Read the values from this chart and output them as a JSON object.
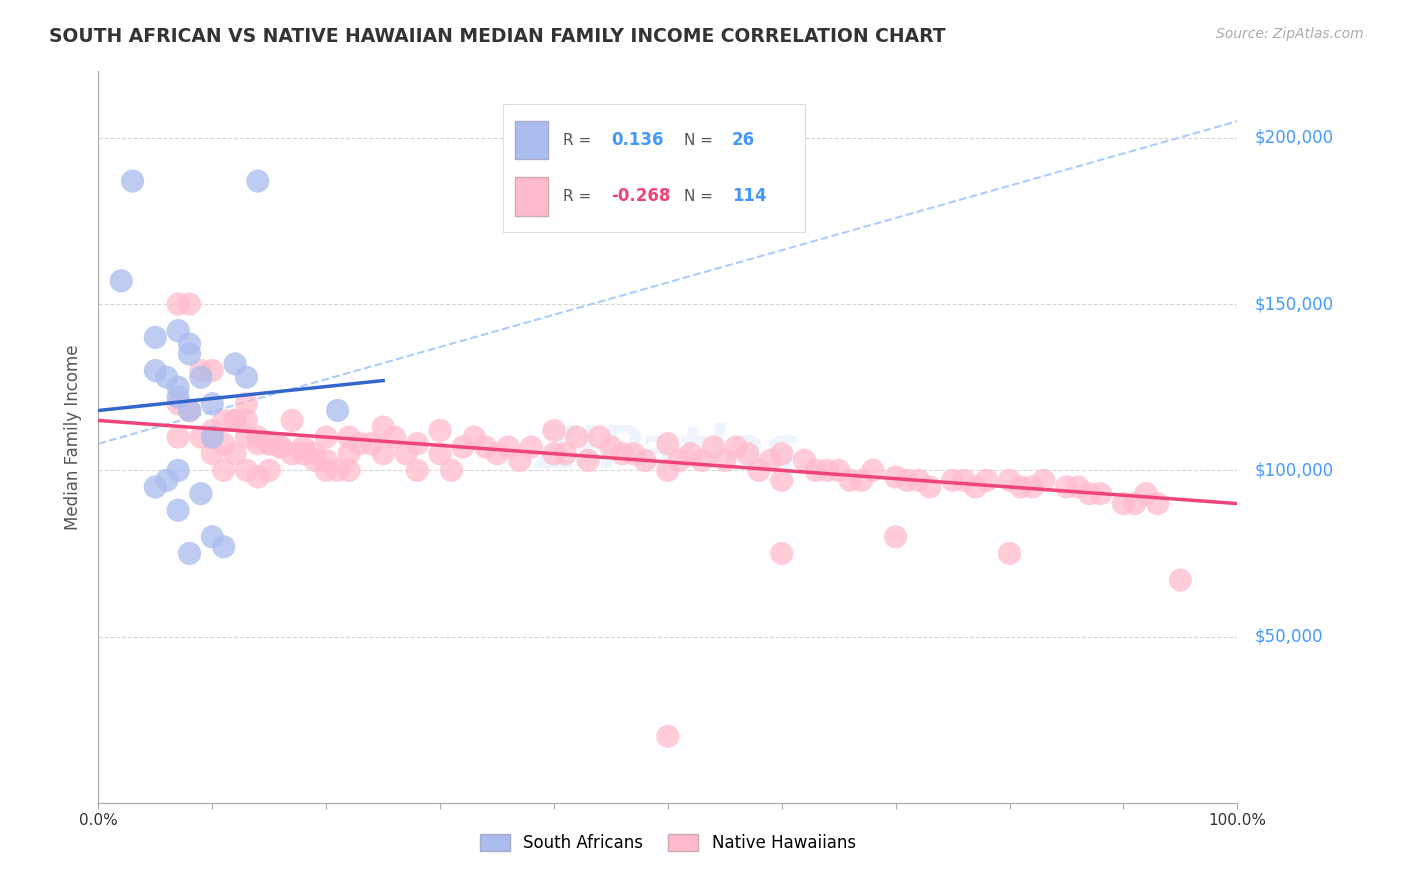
{
  "title": "SOUTH AFRICAN VS NATIVE HAWAIIAN MEDIAN FAMILY INCOME CORRELATION CHART",
  "source_text": "Source: ZipAtlas.com",
  "ylabel": "Median Family Income",
  "xlim": [
    0.0,
    1.0
  ],
  "ylim": [
    0,
    220000
  ],
  "yticks": [
    0,
    50000,
    100000,
    150000,
    200000
  ],
  "ytick_labels": [
    "",
    "$50,000",
    "$100,000",
    "$150,000",
    "$200,000"
  ],
  "xticks": [
    0.0,
    0.1,
    0.2,
    0.3,
    0.4,
    0.5,
    0.6,
    0.7,
    0.8,
    0.9,
    1.0
  ],
  "xtick_labels": [
    "0.0%",
    "",
    "",
    "",
    "",
    "",
    "",
    "",
    "",
    "",
    "100.0%"
  ],
  "background_color": "#ffffff",
  "grid_color": "#cccccc",
  "title_color": "#333333",
  "ytick_color": "#4499ff",
  "blue_color": "#aabbee",
  "pink_color": "#ffbbcc",
  "blue_line_color": "#3366cc",
  "pink_line_color": "#ee4477",
  "dashed_line_color": "#aaccff",
  "legend_r1": "0.136",
  "legend_n1": "26",
  "legend_r2": "-0.268",
  "legend_n2": "114",
  "legend_label1": "South Africans",
  "legend_label2": "Native Hawaiians",
  "watermark": "ZIPatlas",
  "sa_x": [
    0.03,
    0.14,
    0.02,
    0.05,
    0.05,
    0.06,
    0.07,
    0.07,
    0.08,
    0.08,
    0.09,
    0.1,
    0.1,
    0.12,
    0.13,
    0.07,
    0.21,
    0.08,
    0.07,
    0.09,
    0.07,
    0.06,
    0.05,
    0.1,
    0.11,
    0.08
  ],
  "sa_y": [
    187000,
    187000,
    157000,
    140000,
    130000,
    128000,
    125000,
    122000,
    118000,
    138000,
    128000,
    120000,
    110000,
    132000,
    128000,
    142000,
    118000,
    135000,
    88000,
    93000,
    100000,
    97000,
    95000,
    80000,
    77000,
    75000
  ],
  "nh_x": [
    0.07,
    0.07,
    0.08,
    0.09,
    0.1,
    0.1,
    0.11,
    0.11,
    0.12,
    0.12,
    0.13,
    0.13,
    0.14,
    0.14,
    0.15,
    0.15,
    0.16,
    0.17,
    0.18,
    0.19,
    0.2,
    0.2,
    0.22,
    0.22,
    0.23,
    0.24,
    0.25,
    0.25,
    0.26,
    0.27,
    0.28,
    0.28,
    0.3,
    0.3,
    0.31,
    0.32,
    0.33,
    0.34,
    0.35,
    0.36,
    0.37,
    0.38,
    0.4,
    0.4,
    0.41,
    0.42,
    0.43,
    0.44,
    0.45,
    0.46,
    0.47,
    0.48,
    0.5,
    0.5,
    0.51,
    0.52,
    0.53,
    0.54,
    0.55,
    0.56,
    0.57,
    0.58,
    0.59,
    0.6,
    0.6,
    0.62,
    0.63,
    0.64,
    0.65,
    0.66,
    0.67,
    0.68,
    0.7,
    0.71,
    0.72,
    0.73,
    0.75,
    0.76,
    0.77,
    0.78,
    0.8,
    0.81,
    0.82,
    0.83,
    0.85,
    0.86,
    0.87,
    0.88,
    0.9,
    0.91,
    0.92,
    0.93,
    0.95,
    0.07,
    0.08,
    0.09,
    0.1,
    0.11,
    0.12,
    0.13,
    0.13,
    0.14,
    0.15,
    0.16,
    0.17,
    0.18,
    0.19,
    0.2,
    0.21,
    0.22,
    0.5,
    0.6,
    0.7,
    0.8
  ],
  "nh_y": [
    120000,
    110000,
    118000,
    110000,
    112000,
    105000,
    108000,
    100000,
    115000,
    105000,
    120000,
    100000,
    110000,
    98000,
    108000,
    100000,
    107000,
    115000,
    107000,
    105000,
    110000,
    100000,
    110000,
    105000,
    108000,
    108000,
    113000,
    105000,
    110000,
    105000,
    108000,
    100000,
    112000,
    105000,
    100000,
    107000,
    110000,
    107000,
    105000,
    107000,
    103000,
    107000,
    112000,
    105000,
    105000,
    110000,
    103000,
    110000,
    107000,
    105000,
    105000,
    103000,
    108000,
    100000,
    103000,
    105000,
    103000,
    107000,
    103000,
    107000,
    105000,
    100000,
    103000,
    105000,
    97000,
    103000,
    100000,
    100000,
    100000,
    97000,
    97000,
    100000,
    98000,
    97000,
    97000,
    95000,
    97000,
    97000,
    95000,
    97000,
    97000,
    95000,
    95000,
    97000,
    95000,
    95000,
    93000,
    93000,
    90000,
    90000,
    93000,
    90000,
    67000,
    150000,
    150000,
    130000,
    130000,
    115000,
    115000,
    115000,
    110000,
    108000,
    108000,
    107000,
    105000,
    105000,
    103000,
    103000,
    100000,
    100000,
    20000,
    75000,
    80000,
    75000
  ]
}
